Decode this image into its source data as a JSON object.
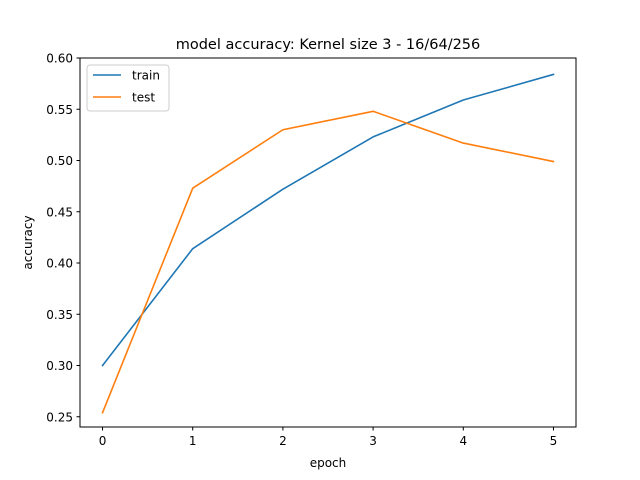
{
  "chart_data": {
    "type": "line",
    "title": "model accuracy: Kernel size 3 - 16/64/256",
    "xlabel": "epoch",
    "ylabel": "accuracy",
    "x": [
      0,
      1,
      2,
      3,
      4,
      5
    ],
    "x_ticks": [
      "0",
      "1",
      "2",
      "3",
      "4",
      "5"
    ],
    "y_ticks": [
      "0.25",
      "0.30",
      "0.35",
      "0.40",
      "0.45",
      "0.50",
      "0.55",
      "0.60"
    ],
    "xlim": [
      -0.25,
      5.25
    ],
    "ylim": [
      0.24,
      0.6
    ],
    "grid": false,
    "legend_position": "upper-left",
    "series": [
      {
        "name": "train",
        "color": "#1f77b4",
        "values": [
          0.3,
          0.414,
          0.472,
          0.523,
          0.559,
          0.584
        ]
      },
      {
        "name": "test",
        "color": "#ff7f0e",
        "values": [
          0.254,
          0.473,
          0.53,
          0.548,
          0.517,
          0.499
        ]
      }
    ]
  }
}
